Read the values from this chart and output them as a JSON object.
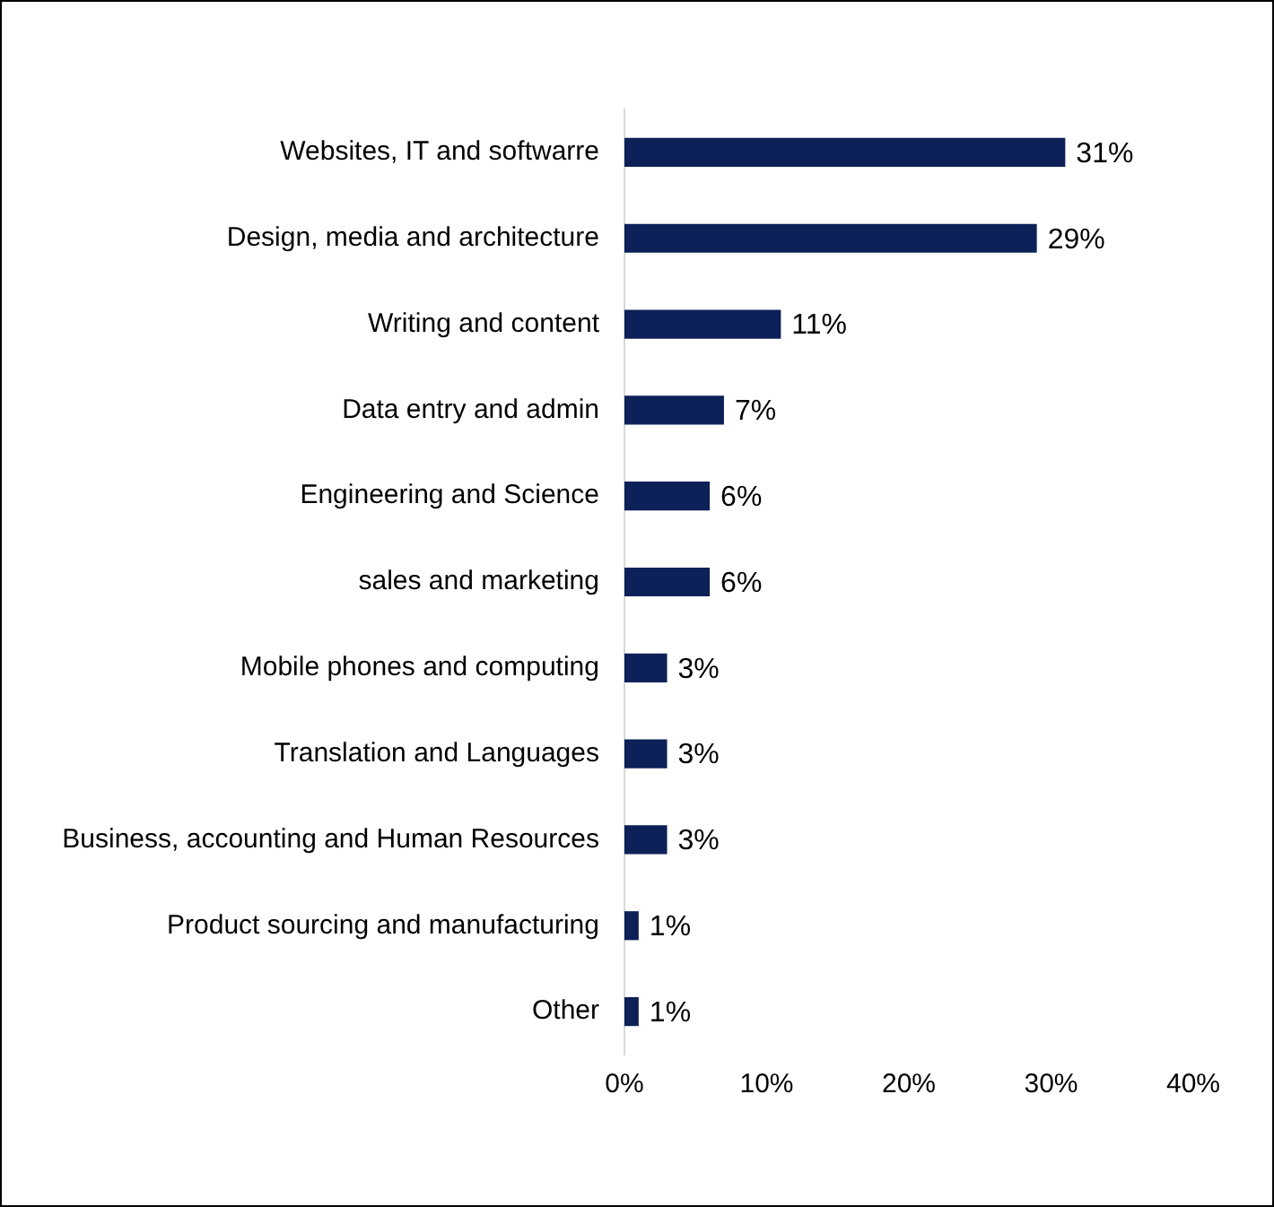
{
  "chart_data": {
    "type": "bar",
    "orientation": "horizontal",
    "categories": [
      "Websites, IT and softwarre",
      "Design, media and architecture",
      "Writing and content",
      "Data entry and admin",
      "Engineering and Science",
      "sales and marketing",
      "Mobile phones and computing",
      "Translation and Languages",
      "Business, accounting and Human Resources",
      "Product sourcing and manufacturing",
      "Other"
    ],
    "values": [
      31,
      29,
      11,
      7,
      6,
      6,
      3,
      3,
      3,
      1,
      1
    ],
    "value_labels": [
      "31%",
      "29%",
      "11%",
      "7%",
      "6%",
      "6%",
      "3%",
      "3%",
      "3%",
      "1%",
      "1%"
    ],
    "color": "#0d2158",
    "xlim": [
      0,
      40
    ],
    "xticks": [
      {
        "value": 0,
        "label": "0%"
      },
      {
        "value": 10,
        "label": "10%"
      },
      {
        "value": 20,
        "label": "20%"
      },
      {
        "value": 30,
        "label": "30%"
      },
      {
        "value": 40,
        "label": "40%"
      }
    ],
    "grid": false,
    "legend": false
  }
}
